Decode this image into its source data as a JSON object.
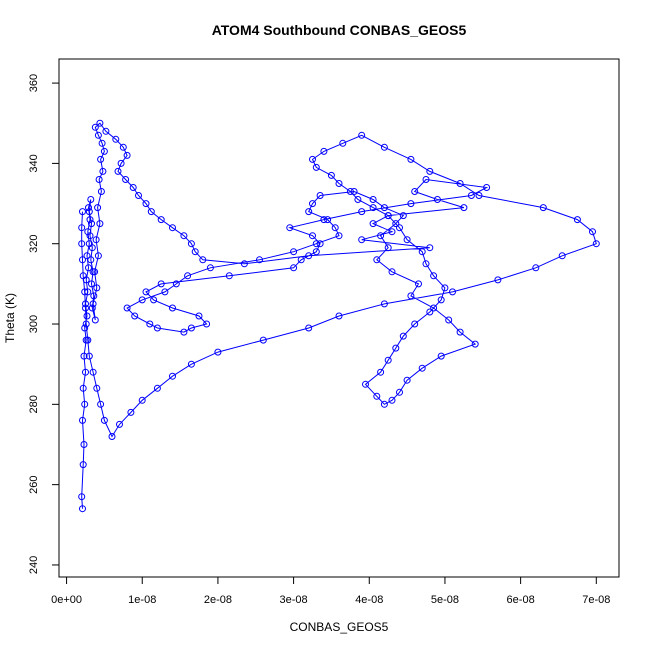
{
  "chart_data": {
    "type": "scatter",
    "title": "ATOM4 Southbound CONBAS_GEOS5",
    "xlabel": "CONBAS_GEOS5",
    "ylabel": "Theta (K)",
    "xlim": [
      -1e-09,
      7.3e-08
    ],
    "ylim": [
      237,
      366
    ],
    "x_ticks": [
      0,
      1e-08,
      2e-08,
      3e-08,
      4e-08,
      5e-08,
      6e-08,
      7e-08
    ],
    "x_tick_labels": [
      "0e+00",
      "1e-08",
      "2e-08",
      "3e-08",
      "4e-08",
      "5e-08",
      "6e-08",
      "7e-08"
    ],
    "y_ticks": [
      240,
      260,
      280,
      300,
      320,
      340,
      360
    ],
    "y_tick_labels": [
      "240",
      "260",
      "280",
      "300",
      "320",
      "340",
      "360"
    ],
    "grid": false,
    "line_color": "#0000ff",
    "series": [
      {
        "mode": "lines+markers",
        "x": [
          2.1e-09,
          2e-09,
          2.2e-09,
          2.3e-09,
          2.1e-09,
          2.4e-09,
          2.2e-09,
          2.5e-09,
          2.3e-09,
          2.6e-09,
          2.4e-09,
          2.7e-09,
          2.5e-09,
          2.8e-09,
          2.6e-09,
          2.9e-09,
          2.7e-09,
          3e-09,
          2.8e-09,
          3.1e-09,
          2.9e-09,
          3.2e-09,
          3e-09,
          3.3e-09,
          3.1e-09,
          3.4e-09,
          3.2e-09,
          3.5e-09,
          3.3e-09,
          3.6e-09,
          3.4e-09,
          3.8e-09,
          3.5e-09,
          4e-09,
          3.7e-09,
          4.2e-09,
          3.9e-09,
          4.4e-09,
          4.1e-09,
          4.6e-09,
          4.3e-09,
          4.8e-09,
          4.5e-09,
          5e-09,
          4.7e-09,
          4.2e-09,
          3.8e-09,
          4.4e-09,
          5.2e-09,
          6.5e-09,
          7.5e-09,
          8e-09,
          7.2e-09,
          6.8e-09,
          7.8e-09,
          8.8e-09,
          9.5e-09,
          1.05e-08,
          1.12e-08,
          1.25e-08,
          1.4e-08,
          1.55e-08,
          1.65e-08,
          1.7e-08,
          1.8e-08,
          2.35e-08,
          3.2e-08,
          4.8e-08,
          3.9e-08,
          4.3e-08,
          4.05e-08,
          4.25e-08,
          5.25e-08,
          4.9e-08,
          4.6e-08,
          4.75e-08,
          5.55e-08,
          5.35e-08,
          4.55e-08,
          3.9e-08,
          3.4e-08,
          2.95e-08,
          3.25e-08,
          3.35e-08,
          3.3e-08,
          3.1e-08,
          3e-08,
          2.15e-08,
          1.25e-08,
          1.05e-08,
          1.15e-08,
          1.4e-08,
          1.75e-08,
          1.85e-08,
          1.65e-08,
          1.55e-08,
          1.2e-08,
          1.1e-08,
          9e-09,
          8e-09,
          1e-08,
          1.3e-08,
          1.45e-08,
          1.6e-08,
          1.9e-08,
          2.55e-08,
          3e-08,
          3.3e-08,
          3.6e-08,
          3.55e-08,
          3.45e-08,
          3.2e-08,
          3.25e-08,
          3.35e-08,
          3.8e-08,
          4.05e-08,
          4.2e-08,
          4.45e-08,
          4.35e-08,
          4.15e-08,
          4.25e-08,
          4.1e-08,
          4.3e-08,
          4.65e-08,
          4.55e-08,
          4.85e-08,
          5.05e-08,
          5.2e-08,
          5.4e-08,
          4.95e-08,
          4.7e-08,
          4.5e-08,
          4.4e-08,
          4.3e-08,
          4.2e-08,
          4.1e-08,
          3.95e-08,
          4.15e-08,
          4.25e-08,
          4.35e-08,
          4.45e-08,
          4.6e-08,
          4.8e-08,
          4.95e-08,
          5e-08,
          4.85e-08,
          4.75e-08,
          4.7e-08,
          4.5e-08,
          4.4e-08,
          4.25e-08,
          4.05e-08,
          3.85e-08,
          3.75e-08,
          3.6e-08,
          3.5e-08,
          3.3e-08,
          3.25e-08,
          3.4e-08,
          3.65e-08,
          3.9e-08,
          4.2e-08,
          4.55e-08,
          4.8e-08,
          5.2e-08,
          5.45e-08,
          6.3e-08,
          6.75e-08,
          6.95e-08,
          7e-08,
          6.55e-08,
          6.2e-08,
          5.7e-08,
          5.1e-08,
          4.2e-08,
          3.6e-08,
          3.2e-08,
          2.6e-08,
          2e-08,
          1.65e-08,
          1.4e-08,
          1.2e-08,
          1e-08,
          8.5e-09,
          7e-09,
          6e-09,
          5e-09,
          4.5e-09,
          4e-09,
          3.5e-09,
          3e-09,
          2.8e-09,
          2.6e-09,
          2.5e-09,
          2.4e-09,
          2.2e-09,
          2.1e-09,
          2e-09,
          2e-09,
          2.1e-09
        ],
        "y": [
          254,
          257,
          265,
          270,
          276,
          280,
          284,
          288,
          292,
          296,
          299,
          302,
          305,
          308,
          311,
          314,
          317,
          320,
          323,
          326,
          329,
          331,
          328,
          325,
          322,
          319,
          316,
          313,
          310,
          307,
          304,
          301,
          305,
          309,
          313,
          317,
          321,
          325,
          329,
          333,
          336,
          338,
          341,
          343,
          345,
          347,
          349,
          350,
          348,
          346,
          344,
          342,
          340,
          338,
          336,
          334,
          332,
          330,
          328,
          326,
          324,
          322,
          320,
          318,
          316,
          315,
          317,
          319,
          321,
          323,
          325,
          327,
          329,
          331,
          333,
          336,
          334,
          332,
          330,
          328,
          326,
          324,
          322,
          320,
          318,
          316,
          314,
          312,
          310,
          308,
          306,
          304,
          302,
          300,
          299,
          298,
          299,
          300,
          302,
          304,
          306,
          308,
          310,
          312,
          314,
          316,
          318,
          320,
          322,
          324,
          326,
          328,
          330,
          332,
          333,
          331,
          329,
          327,
          325,
          322,
          319,
          316,
          313,
          310,
          307,
          304,
          301,
          298,
          295,
          292,
          289,
          286,
          283,
          281,
          280,
          282,
          285,
          288,
          291,
          294,
          297,
          300,
          303,
          306,
          309,
          312,
          315,
          318,
          321,
          324,
          327,
          329,
          331,
          333,
          335,
          337,
          339,
          341,
          343,
          345,
          347,
          344,
          341,
          338,
          335,
          332,
          329,
          326,
          323,
          320,
          317,
          314,
          311,
          308,
          305,
          302,
          299,
          296,
          293,
          290,
          287,
          284,
          281,
          278,
          275,
          272,
          276,
          280,
          284,
          288,
          292,
          296,
          300,
          304,
          308,
          312,
          316,
          320,
          324,
          328
        ]
      }
    ]
  }
}
